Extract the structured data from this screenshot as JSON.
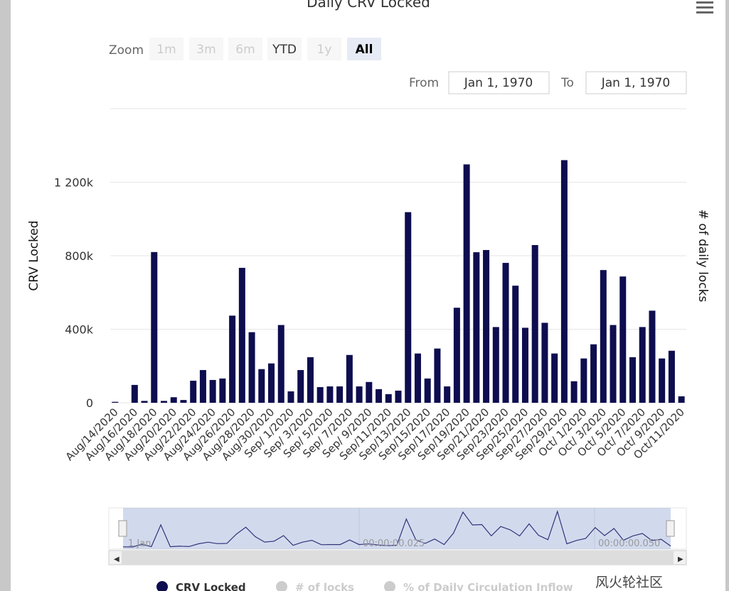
{
  "chart_data": {
    "type": "bar",
    "title": "Daily CRV Locked",
    "categories": [
      "Aug/14/2020",
      null,
      "Aug/16/2020",
      null,
      "Aug/18/2020",
      null,
      "Aug/20/2020",
      null,
      "Aug/22/2020",
      null,
      "Aug/24/2020",
      null,
      "Aug/26/2020",
      null,
      "Aug/28/2020",
      null,
      "Aug/30/2020",
      null,
      "Sep/ 1/2020",
      null,
      "Sep/ 3/2020",
      null,
      "Sep/ 5/2020",
      null,
      "Sep/ 7/2020",
      null,
      "Sep/ 9/2020",
      null,
      "Sep/11/2020",
      null,
      "Sep/13/2020",
      null,
      "Sep/15/2020",
      null,
      "Sep/17/2020",
      null,
      "Sep/19/2020",
      null,
      "Sep/21/2020",
      null,
      "Sep/23/2020",
      null,
      "Sep/25/2020",
      null,
      "Sep/27/2020",
      null,
      "Sep/29/2020",
      null,
      "Oct/ 1/2020",
      null,
      "Oct/ 3/2020",
      null,
      "Oct/ 5/2020",
      null,
      "Oct/ 7/2020",
      null,
      "Oct/ 9/2020",
      null,
      "Oct/11/2020"
    ],
    "series": [
      {
        "name": "CRV Locked",
        "color": "#0d0d4f",
        "values": [
          5000,
          0,
          97000,
          10000,
          820000,
          10000,
          30000,
          15000,
          120000,
          178000,
          124000,
          132000,
          474000,
          734000,
          384000,
          183000,
          214000,
          423000,
          62000,
          178000,
          248000,
          85000,
          89000,
          89000,
          260000,
          89000,
          113000,
          74000,
          47000,
          66000,
          1037000,
          268000,
          132000,
          295000,
          89000,
          517000,
          1297000,
          819000,
          831000,
          412000,
          761000,
          637000,
          408000,
          858000,
          435000,
          268000,
          1320000,
          117000,
          241000,
          318000,
          722000,
          423000,
          687000,
          248000,
          412000,
          501000,
          241000,
          283000,
          35000
        ]
      }
    ],
    "hidden_series": [
      {
        "name": "# of locks"
      },
      {
        "name": "% of Daily Circulation Inflow"
      }
    ],
    "y_label": "CRV Locked",
    "y2_label": "# of daily locks",
    "ylim": [
      0,
      1600000
    ],
    "yticks": [
      0,
      {
        "value": 400000,
        "label": "400k"
      },
      {
        "value": 800000,
        "label": "800k"
      },
      {
        "value": 1200000,
        "label": "1 200k"
      }
    ],
    "grid": true
  },
  "ui": {
    "zoom_label": "Zoom",
    "zoom_buttons": [
      "1m",
      "3m",
      "6m",
      "YTD",
      "1y",
      "All"
    ],
    "from_label": "From",
    "from_value": "Jan 1, 1970",
    "to_label": "To",
    "to_value": "Jan 1, 1970",
    "navigator_labels": [
      "1 Jan",
      "00:00:00.025",
      "00:00:00.050"
    ],
    "watermark": "风火轮社区"
  }
}
